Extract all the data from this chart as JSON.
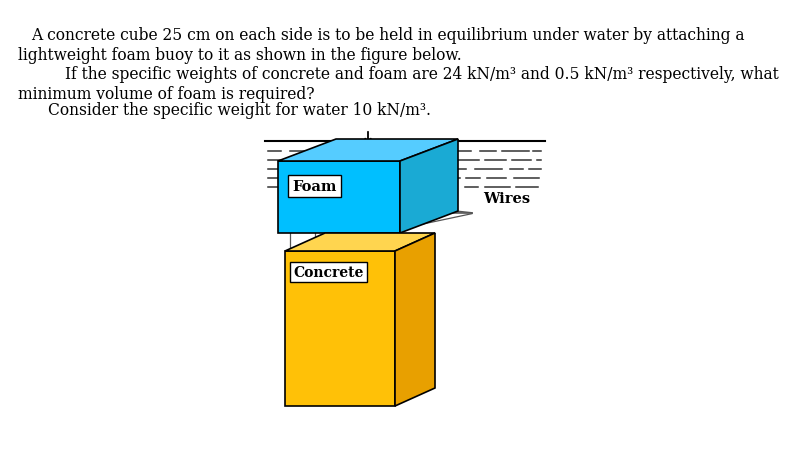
{
  "foam_color_front": "#00BFFF",
  "foam_color_top": "#55CCFF",
  "foam_color_side": "#1AAAD4",
  "concrete_color_front": "#FFC107",
  "concrete_color_top": "#FFD54F",
  "concrete_color_side": "#E8A000",
  "background_color": "#ffffff",
  "text1": "A concrete cube 25 cm on each side is to be held in equilibrium under water by attaching a",
  "text2": "lightweight foam buoy to it as shown in the figure below.",
  "text3": "If the specific weights of concrete and foam are 24 kN/m³ and 0.5 kN/m³ respectively, what",
  "text4": "minimum volume of foam is required?",
  "text5": "Consider the specific weight for water 10 kN/m³.",
  "foam_label": "Foam",
  "concrete_label": "Concrete",
  "wires_label": "Wires"
}
